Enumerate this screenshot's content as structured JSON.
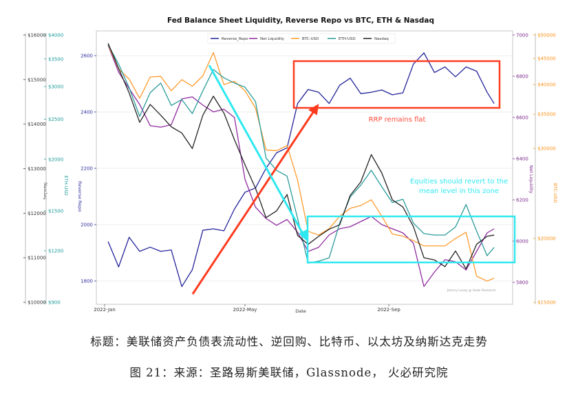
{
  "chart_data": {
    "type": "line",
    "title": "Fed Balance Sheet Liquidity, Reverse Repo vs BTC, ETH & Nasdaq",
    "xlabel": "Date",
    "x_ticks": [
      {
        "date": "2022-01-01",
        "label": "2022-Jan"
      },
      {
        "date": "2022-05-01",
        "label": "2022-May"
      },
      {
        "date": "2022-09-01",
        "label": "2022-Sep"
      }
    ],
    "legend_position": "top-center",
    "grid": true,
    "x": [
      "2022-01-04",
      "2022-01-13",
      "2022-01-22",
      "2022-01-31",
      "2022-02-09",
      "2022-02-18",
      "2022-02-27",
      "2022-03-08",
      "2022-03-17",
      "2022-03-26",
      "2022-04-04",
      "2022-04-13",
      "2022-04-22",
      "2022-05-01",
      "2022-05-10",
      "2022-05-19",
      "2022-05-28",
      "2022-06-06",
      "2022-06-15",
      "2022-06-24",
      "2022-07-03",
      "2022-07-12",
      "2022-07-21",
      "2022-07-30",
      "2022-08-08",
      "2022-08-17",
      "2022-08-26",
      "2022-09-04",
      "2022-09-13",
      "2022-09-22",
      "2022-10-01",
      "2022-10-10",
      "2022-10-19",
      "2022-10-28",
      "2022-11-06",
      "2022-11-15",
      "2022-11-24",
      "2022-11-30"
    ],
    "axes": {
      "rrp": {
        "label": "Reverse Repo",
        "scale": "linear",
        "range": [
          1800,
          2600
        ],
        "ticks": [
          {
            "v": 2600,
            "t": "2600"
          },
          {
            "v": 2400,
            "t": "2400"
          },
          {
            "v": 2200,
            "t": "2200"
          },
          {
            "v": 2000,
            "t": "2000"
          },
          {
            "v": 1800,
            "t": "1800"
          }
        ],
        "color": "#2e2e9e"
      },
      "netliq": {
        "label": "Net Liquidity",
        "scale": "linear",
        "range": [
          5800,
          7000
        ],
        "ticks": [
          {
            "v": 7000,
            "t": "7000"
          },
          {
            "v": 6800,
            "t": "6800"
          },
          {
            "v": 6600,
            "t": "6600"
          },
          {
            "v": 6400,
            "t": "6400"
          },
          {
            "v": 6200,
            "t": "6200"
          },
          {
            "v": 6000,
            "t": "6000"
          },
          {
            "v": 5800,
            "t": "5800"
          }
        ],
        "color": "#7b2a8e"
      },
      "nasdaq": {
        "label": "Nasdaq",
        "scale": "linear",
        "range": [
          10000,
          16000
        ],
        "ticks": [
          {
            "v": 16000,
            "t": "$16000"
          },
          {
            "v": 15000,
            "t": "$15000"
          },
          {
            "v": 14000,
            "t": "$14000"
          },
          {
            "v": 13000,
            "t": "$13000"
          },
          {
            "v": 12000,
            "t": "$12000"
          },
          {
            "v": 11000,
            "t": "$11000"
          },
          {
            "v": 10000,
            "t": "$10000"
          }
        ],
        "color": "#333333"
      },
      "eth": {
        "label": "ETH-USD",
        "scale": "log",
        "range": [
          900,
          4000
        ],
        "ticks": [
          {
            "v": 4000,
            "t": "$4000"
          },
          {
            "v": 3500,
            "t": "$3500"
          },
          {
            "v": 3000,
            "t": "$3000"
          },
          {
            "v": 2500,
            "t": "$2500"
          },
          {
            "v": 2000,
            "t": "$2000"
          },
          {
            "v": 1500,
            "t": "$1500"
          },
          {
            "v": 1200,
            "t": "$1200"
          },
          {
            "v": 900,
            "t": "$900"
          }
        ],
        "color": "#1f9a9a"
      },
      "btc": {
        "label": "BTC-USD",
        "scale": "log",
        "range": [
          15000,
          50000
        ],
        "ticks": [
          {
            "v": 50000,
            "t": "$50000"
          },
          {
            "v": 45000,
            "t": "$45000"
          },
          {
            "v": 40000,
            "t": "$40000"
          },
          {
            "v": 35000,
            "t": "$35000"
          },
          {
            "v": 30000,
            "t": "$30000"
          },
          {
            "v": 20000,
            "t": "$20000"
          },
          {
            "v": 15000,
            "t": "$15000"
          }
        ],
        "color": "#f7931a"
      }
    },
    "series": [
      {
        "name": "Reverse_Repo",
        "axis": "rrp",
        "color": "#23239a",
        "values": [
          1940,
          1850,
          1955,
          1905,
          1920,
          1905,
          1910,
          1780,
          1840,
          1980,
          1985,
          1978,
          2055,
          2115,
          2130,
          2200,
          2255,
          2273,
          2430,
          2480,
          2470,
          2430,
          2495,
          2520,
          2465,
          2470,
          2478,
          2461,
          2468,
          2570,
          2610,
          2540,
          2560,
          2525,
          2560,
          2545,
          2470,
          2430
        ]
      },
      {
        "name": "Net Liquidity",
        "axis": "netliq",
        "color": "#8e2a9e",
        "values": [
          6950,
          6820,
          6740,
          6663,
          6560,
          6553,
          6565,
          6690,
          6700,
          6660,
          6627,
          6640,
          6600,
          6300,
          6165,
          6110,
          6077,
          6105,
          6043,
          5950,
          5970,
          6030,
          6060,
          6070,
          6095,
          6120,
          6080,
          6060,
          6040,
          5990,
          5780,
          5850,
          5910,
          5900,
          5860,
          5950,
          6040,
          6060
        ]
      },
      {
        "name": "BTC-USD",
        "axis": "btc",
        "color": "#ff9a2a",
        "values": [
          47860,
          42900,
          41000,
          37600,
          41400,
          41500,
          38900,
          40900,
          39700,
          41600,
          46200,
          40000,
          40600,
          38900,
          36000,
          29800,
          29700,
          30400,
          26000,
          20650,
          20300,
          20900,
          22100,
          22900,
          23200,
          23800,
          22100,
          20400,
          20200,
          19800,
          19340,
          19340,
          19340,
          20000,
          20560,
          16870,
          16500,
          16720
        ]
      },
      {
        "name": "ETH-USD",
        "axis": "eth",
        "color": "#2a9a9a",
        "values": [
          3790,
          3400,
          2980,
          2540,
          2900,
          3060,
          2700,
          2790,
          2580,
          2930,
          3300,
          3150,
          3060,
          2990,
          2760,
          2014,
          1880,
          1820,
          1437,
          1120,
          1132,
          1154,
          1400,
          1620,
          1730,
          1880,
          1714,
          1570,
          1600,
          1400,
          1320,
          1310,
          1310,
          1370,
          1553,
          1340,
          1167,
          1222
        ]
      },
      {
        "name": "Nasdaq",
        "axis": "nasdaq",
        "color": "#222222",
        "values": [
          15815,
          15250,
          14700,
          14040,
          14440,
          14200,
          13940,
          13800,
          13450,
          14200,
          14627,
          14250,
          13650,
          13090,
          12560,
          11900,
          12050,
          12420,
          11500,
          11300,
          11480,
          11640,
          11740,
          12400,
          12700,
          13315,
          12900,
          12300,
          12140,
          11700,
          11000,
          10950,
          10800,
          11150,
          10750,
          11300,
          11480,
          11509
        ]
      }
    ],
    "annotations": {
      "rrp_text": "RRP remains flat",
      "equities_text_line1": "Equities should revert to the",
      "equities_text_line2": "mean level in this zone",
      "red_color": "#ff3b1f",
      "cyan_color": "#2ee8f0"
    },
    "watermark": "Johnny Losey @ Hodo Research"
  },
  "caption": {
    "title_line": "标题：美联储资产负债表流动性、逆回购、比特币、以太坊及纳斯达克走势",
    "source_line": "图 21：来源：圣路易斯美联储，Glassnode， 火必研究院"
  }
}
